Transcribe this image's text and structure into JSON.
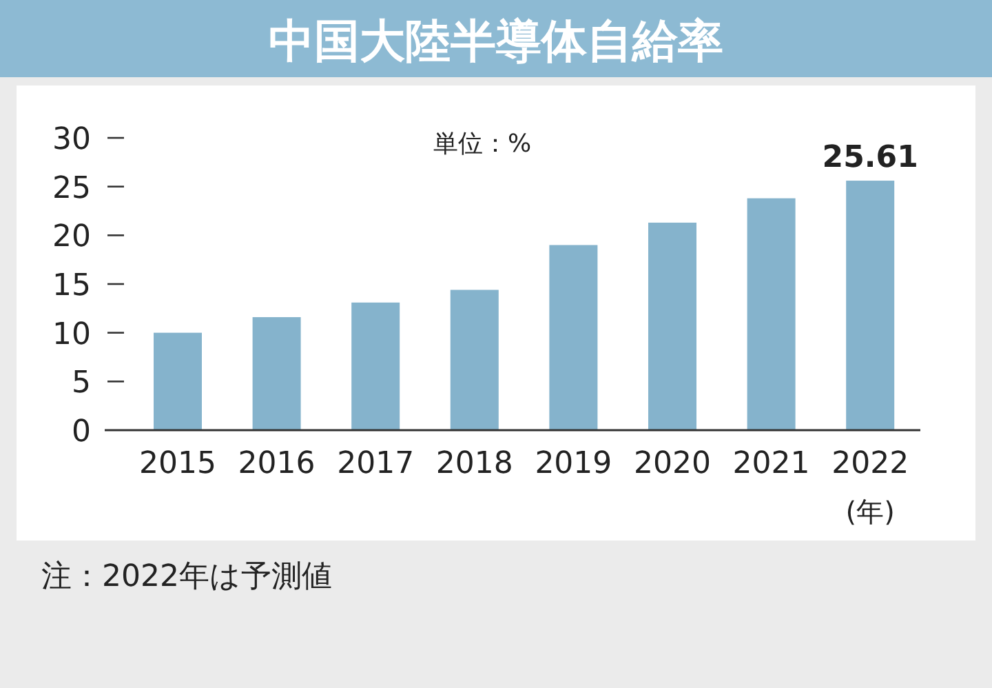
{
  "chart_data": {
    "type": "bar",
    "title": "中国大陸半導体自給率",
    "ylabel": "単位：%",
    "xlabel": "(年)",
    "categories": [
      "2015",
      "2016",
      "2017",
      "2018",
      "2019",
      "2020",
      "2021",
      "2022"
    ],
    "values": [
      10,
      11.6,
      13.1,
      14.4,
      19,
      21.3,
      23.8,
      25.61
    ],
    "value_labels": [
      null,
      null,
      null,
      null,
      null,
      null,
      null,
      "25.61"
    ],
    "color": "#85b3cc",
    "ylim": [
      0,
      30
    ],
    "yticks": [
      0,
      5,
      10,
      15,
      20,
      25,
      30
    ],
    "grid": false,
    "annotations": [
      "注：2022年は予測値"
    ]
  }
}
